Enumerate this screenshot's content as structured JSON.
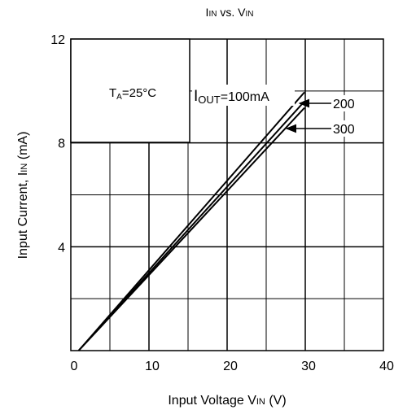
{
  "chart_data": {
    "type": "line",
    "title_main": "IIN",
    "title_main_sub": "IN",
    "title_main_lead": "I",
    "title_vs": " vs. V",
    "title_end_sub": "IN",
    "xlabel_main": "Input Voltage V",
    "xlabel_sub": "IN",
    "xlabel_unit": " (V)",
    "ylabel_main": "Input Current, I",
    "ylabel_sub": "IN",
    "ylabel_unit": " (mA)",
    "xlim": [
      0,
      40
    ],
    "ylim": [
      0,
      12
    ],
    "x_ticks": [
      0,
      10,
      20,
      30,
      40
    ],
    "x_tick_labels": [
      "0",
      "10",
      "20",
      "30",
      "40"
    ],
    "y_ticks": [
      0,
      4,
      8,
      12
    ],
    "y_tick_labels": [
      "",
      "4",
      "8",
      "12"
    ],
    "grid": true,
    "condition": {
      "lead": "T",
      "sub": "A",
      "rest": "=25°C"
    },
    "series": [
      {
        "name": "IOUT=100mA",
        "name_lead": "I",
        "name_sub": "OUT",
        "name_rest": "=100mA",
        "x": [
          1,
          29.9
        ],
        "y": [
          0,
          9.95
        ]
      },
      {
        "name": "200",
        "x": [
          1,
          29.9
        ],
        "y": [
          0,
          9.6
        ]
      },
      {
        "name": "300",
        "x": [
          1,
          29.9
        ],
        "y": [
          0,
          9.35
        ]
      }
    ]
  }
}
